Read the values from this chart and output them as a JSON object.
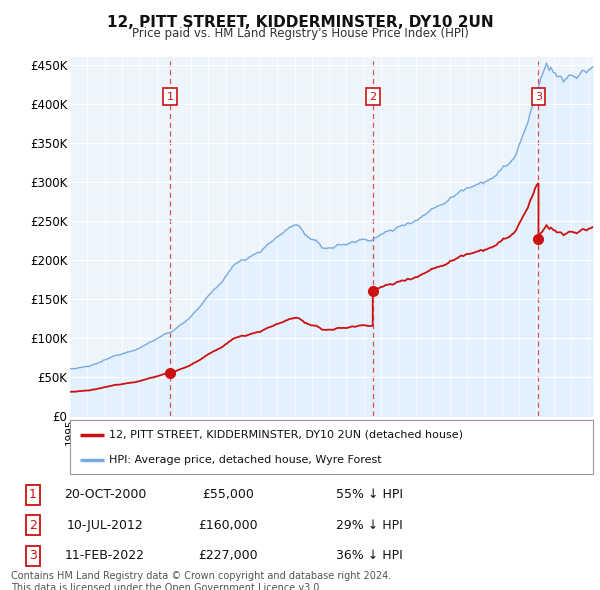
{
  "title": "12, PITT STREET, KIDDERMINSTER, DY10 2UN",
  "subtitle": "Price paid vs. HM Land Registry's House Price Index (HPI)",
  "ylabel_ticks": [
    0,
    50000,
    100000,
    150000,
    200000,
    250000,
    300000,
    350000,
    400000,
    450000
  ],
  "ylim": [
    0,
    460000
  ],
  "xlim_start": 1995.0,
  "xlim_end": 2025.3,
  "hpi_color": "#7aabe0",
  "hpi_fill_color": "#ddeeff",
  "price_color": "#cc1111",
  "vline_color": "#dd3333",
  "sale_points": [
    {
      "year": 2000.79,
      "price": 55000,
      "label": "1",
      "date": "20-OCT-2000",
      "amount": "£55,000",
      "pct": "55% ↓ HPI"
    },
    {
      "year": 2012.52,
      "price": 160000,
      "label": "2",
      "date": "10-JUL-2012",
      "amount": "£160,000",
      "pct": "29% ↓ HPI"
    },
    {
      "year": 2022.12,
      "price": 227000,
      "label": "3",
      "date": "11-FEB-2022",
      "amount": "£227,000",
      "pct": "36% ↓ HPI"
    }
  ],
  "legend_entries": [
    {
      "label": "12, PITT STREET, KIDDERMINSTER, DY10 2UN (detached house)",
      "color": "#cc1111"
    },
    {
      "label": "HPI: Average price, detached house, Wyre Forest",
      "color": "#7aabe0"
    }
  ],
  "footer": "Contains HM Land Registry data © Crown copyright and database right 2024.\nThis data is licensed under the Open Government Licence v3.0.",
  "background_color": "#ffffff",
  "plot_bg_color": "#eef4fb",
  "grid_color": "#ffffff"
}
